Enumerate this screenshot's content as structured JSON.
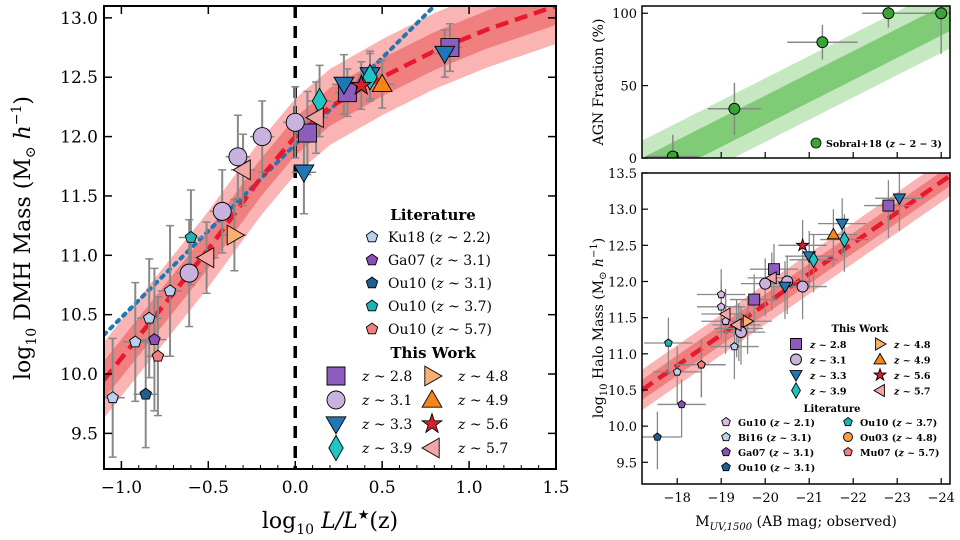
{
  "colors": {
    "red": "#e8192c",
    "band1": "#f08080",
    "band2": "#fbb4b4",
    "green": "#3aa335",
    "gband1": "#7fcb76",
    "gband2": "#c6e8c0",
    "blue": "#1f77b4",
    "dot": "#1f77b4"
  },
  "chart_data": [
    {
      "id": "left",
      "type": "scatter",
      "xlabel_main": "log",
      "xlabel_sub": "10",
      "xlabel_rest": " L/L",
      "xlabel_star": "★",
      "xlabel_end": "(z)",
      "ylabel_main": "log",
      "ylabel_sub": "10",
      "ylabel_rest": " DMH Mass (M",
      "ylabel_sun": "⊙",
      "ylabel_end": " h",
      "ylabel_sup": "−1",
      "ylabel_close": ")",
      "xlim": [
        -1.1,
        1.5
      ],
      "ylim": [
        9.2,
        13.1
      ],
      "xticks": [
        "−1.0",
        "−0.5",
        "0.0",
        "0.5",
        "1.0",
        "1.5"
      ],
      "xtick_values": [
        -1,
        -0.5,
        0,
        0.5,
        1,
        1.5
      ],
      "yticks": [
        "9.5",
        "10.0",
        "10.5",
        "11.0",
        "11.5",
        "12.0",
        "12.5",
        "13.0"
      ],
      "ytick_values": [
        9.5,
        10,
        10.5,
        11,
        11.5,
        12,
        12.5,
        13
      ],
      "fit_x": [
        -1.1,
        -0.8,
        -0.5,
        -0.2,
        0,
        0.2,
        0.5,
        0.8,
        1.1,
        1.5
      ],
      "fit_y": [
        9.95,
        10.5,
        11.05,
        11.65,
        12.0,
        12.25,
        12.5,
        12.72,
        12.9,
        13.1
      ],
      "dotted_line": {
        "x": [
          -1.1,
          0.8
        ],
        "y": [
          10.33,
          13.1
        ]
      },
      "vline_x": 0,
      "literature": [
        {
          "name": "Ku18",
          "x": -1.05,
          "y": 9.8,
          "err": 0.5,
          "color": "#b8d0f0"
        },
        {
          "name": "Ku18",
          "x": -0.92,
          "y": 10.27,
          "err": 0.5,
          "color": "#b8d0f0"
        },
        {
          "name": "Ku18",
          "x": -0.84,
          "y": 10.47,
          "err": 0.5,
          "color": "#b8d0f0"
        },
        {
          "name": "Ku18",
          "x": -0.72,
          "y": 10.7,
          "err": 0.55,
          "color": "#b8d0f0"
        },
        {
          "name": "Ga07",
          "x": -0.81,
          "y": 10.29,
          "err": 0.6,
          "color": "#8b4fb5"
        },
        {
          "name": "Ou10",
          "x": -0.86,
          "y": 9.83,
          "err": 0.45,
          "color": "#1f5f8f"
        },
        {
          "name": "Ou10",
          "x": -0.6,
          "y": 11.15,
          "err": 0.4,
          "color": "#20b3b3"
        },
        {
          "name": "Ou10",
          "x": -0.79,
          "y": 10.15,
          "err": 0.5,
          "color": "#f08080"
        }
      ],
      "this_work": [
        {
          "z": "2.8",
          "x": 0.07,
          "y": 12.03,
          "marker": "square",
          "color": "#8e5cbf",
          "err": 0.35
        },
        {
          "z": "2.8",
          "x": 0.3,
          "y": 12.37,
          "marker": "square",
          "color": "#8e5cbf",
          "err": 0.2
        },
        {
          "z": "2.8",
          "x": 0.89,
          "y": 12.75,
          "marker": "square",
          "color": "#8e5cbf",
          "err": 0.2
        },
        {
          "z": "3.1",
          "x": -0.61,
          "y": 10.85,
          "marker": "circle",
          "color": "#c8b3df",
          "err": 0.45
        },
        {
          "z": "3.1",
          "x": -0.42,
          "y": 11.37,
          "marker": "circle",
          "color": "#c8b3df",
          "err": 0.35
        },
        {
          "z": "3.1",
          "x": -0.33,
          "y": 11.83,
          "marker": "circle",
          "color": "#c8b3df",
          "err": 0.35
        },
        {
          "z": "3.1",
          "x": -0.19,
          "y": 12.0,
          "marker": "circle",
          "color": "#c8b3df",
          "err": 0.3
        },
        {
          "z": "3.1",
          "x": 0.0,
          "y": 12.12,
          "marker": "circle",
          "color": "#c8b3df",
          "err": 0.3
        },
        {
          "z": "3.3",
          "x": 0.05,
          "y": 11.7,
          "marker": "tridown",
          "color": "#1f77b4",
          "err": 0.35
        },
        {
          "z": "3.3",
          "x": 0.28,
          "y": 12.44,
          "marker": "tridown",
          "color": "#1f77b4",
          "err": 0.25
        },
        {
          "z": "3.3",
          "x": 0.43,
          "y": 12.52,
          "marker": "tridown",
          "color": "#1f77b4",
          "err": 0.2
        },
        {
          "z": "3.3",
          "x": 0.86,
          "y": 12.7,
          "marker": "tridown",
          "color": "#1f77b4",
          "err": 0.2
        },
        {
          "z": "3.9",
          "x": 0.14,
          "y": 12.3,
          "marker": "diamond",
          "color": "#20c4c4",
          "err": 0.3
        },
        {
          "z": "3.9",
          "x": 0.43,
          "y": 12.5,
          "marker": "diamond",
          "color": "#20c4c4",
          "err": 0.2
        },
        {
          "z": "4.8",
          "x": -0.35,
          "y": 11.17,
          "marker": "triright",
          "color": "#f7b070",
          "err": 0.3
        },
        {
          "z": "4.9",
          "x": 0.5,
          "y": 12.44,
          "marker": "triup",
          "color": "#f58518",
          "err": 0.2
        },
        {
          "z": "5.6",
          "x": 0.38,
          "y": 12.43,
          "marker": "star",
          "color": "#d8202c",
          "err": 0.2
        },
        {
          "z": "5.7",
          "x": -0.51,
          "y": 10.98,
          "marker": "trileft",
          "color": "#f4a6a6",
          "err": 0.3
        },
        {
          "z": "5.7",
          "x": -0.3,
          "y": 11.72,
          "marker": "trileft",
          "color": "#f4a6a6",
          "err": 0.3
        },
        {
          "z": "5.7",
          "x": 0.12,
          "y": 12.16,
          "marker": "trileft",
          "color": "#f4a6a6",
          "err": 0.3
        }
      ],
      "legend_lit_title": "Literature",
      "legend_lit": [
        {
          "label": "Ku18 (",
          "z": "z",
          "rest": " ~ 2.2)",
          "color": "#b8d0f0"
        },
        {
          "label": "Ga07 (",
          "z": "z",
          "rest": " ~ 3.1)",
          "color": "#8b4fb5"
        },
        {
          "label": "Ou10 (",
          "z": "z",
          "rest": " ~ 3.1)",
          "color": "#1f5f8f"
        },
        {
          "label": "Ou10 (",
          "z": "z",
          "rest": " ~ 3.7)",
          "color": "#20b3b3"
        },
        {
          "label": "Ou10 (",
          "z": "z",
          "rest": " ~ 5.7)",
          "color": "#f08080"
        }
      ],
      "legend_tw_title": "This Work",
      "legend_tw": [
        {
          "z": "z",
          "rest": " ~ 2.8",
          "marker": "square",
          "color": "#8e5cbf"
        },
        {
          "z": "z",
          "rest": " ~ 3.1",
          "marker": "circle",
          "color": "#c8b3df"
        },
        {
          "z": "z",
          "rest": " ~ 3.3",
          "marker": "tridown",
          "color": "#1f77b4"
        },
        {
          "z": "z",
          "rest": " ~ 3.9",
          "marker": "diamond",
          "color": "#20c4c4"
        },
        {
          "z": "z",
          "rest": " ~ 4.8",
          "marker": "triright",
          "color": "#f7b070"
        },
        {
          "z": "z",
          "rest": " ~ 4.9",
          "marker": "triup",
          "color": "#f58518"
        },
        {
          "z": "z",
          "rest": " ~ 5.6",
          "marker": "star",
          "color": "#d8202c"
        },
        {
          "z": "z",
          "rest": " ~ 5.7",
          "marker": "trileft",
          "color": "#f4a6a6"
        }
      ]
    },
    {
      "id": "top-right",
      "type": "scatter",
      "ylabel": "AGN Fraction (%)",
      "xlim": [
        -17.2,
        -24.2
      ],
      "ylim": [
        0,
        105
      ],
      "yticks": [
        "0",
        "50",
        "100"
      ],
      "ytick_values": [
        0,
        50,
        100
      ],
      "points": [
        {
          "x": -17.9,
          "y": 1,
          "xerr": 0.6,
          "yerr": 15
        },
        {
          "x": -19.3,
          "y": 34,
          "xerr": 0.6,
          "yerr": 18
        },
        {
          "x": -21.3,
          "y": 80,
          "xerr": 0.8,
          "yerr": 12
        },
        {
          "x": -22.8,
          "y": 100,
          "xerr": 0.6,
          "yerr": 10
        },
        {
          "x": -24.0,
          "y": 100,
          "xerr": 0.6,
          "yerr": 28
        }
      ],
      "legend": "Sobral+18 (",
      "legend_z": "z",
      "legend_rest": " ~ 2 − 3)"
    },
    {
      "id": "bottom-right",
      "type": "scatter",
      "xlabel_main": "M",
      "xlabel_sub": "UV,1500",
      "xlabel_rest": " (AB mag; observed)",
      "ylabel_main": "log",
      "ylabel_sub": "10",
      "ylabel_rest": " Halo Mass (M",
      "ylabel_sun": "⊙",
      "ylabel_end": " h",
      "ylabel_sup": "−1",
      "ylabel_close": ")",
      "xlim": [
        -17.2,
        -24.2
      ],
      "ylim": [
        9.2,
        13.5
      ],
      "xticks": [
        "−18",
        "−19",
        "−20",
        "−21",
        "−22",
        "−23",
        "−24"
      ],
      "xtick_values": [
        -18,
        -19,
        -20,
        -21,
        -22,
        -23,
        -24
      ],
      "yticks": [
        "9.5",
        "10.0",
        "10.5",
        "11.0",
        "11.5",
        "12.0",
        "12.5",
        "13.0",
        "13.5"
      ],
      "ytick_values": [
        9.5,
        10,
        10.5,
        11,
        11.5,
        12,
        12.5,
        13,
        13.5
      ],
      "fit_x": [
        -17.2,
        -18.5,
        -19.5,
        -20.5,
        -21.5,
        -22.5,
        -23.5,
        -24.2
      ],
      "fit_y": [
        10.5,
        11.05,
        11.55,
        12.0,
        12.45,
        12.85,
        13.2,
        13.45
      ],
      "legend_tw_title": "This Work",
      "legend_lit_title": "Literature",
      "legend_tw": [
        {
          "z": "z",
          "rest": " ~ 2.8",
          "marker": "square",
          "color": "#8e5cbf"
        },
        {
          "z": "z",
          "rest": " ~ 3.1",
          "marker": "circle",
          "color": "#c8b3df"
        },
        {
          "z": "z",
          "rest": " ~ 3.3",
          "marker": "tridown",
          "color": "#1f77b4"
        },
        {
          "z": "z",
          "rest": " ~ 3.9",
          "marker": "diamond",
          "color": "#20c4c4"
        },
        {
          "z": "z",
          "rest": " ~ 4.8",
          "marker": "triright",
          "color": "#f7b070"
        },
        {
          "z": "z",
          "rest": " ~ 4.9",
          "marker": "triup",
          "color": "#f58518"
        },
        {
          "z": "z",
          "rest": " ~ 5.6",
          "marker": "star",
          "color": "#d8202c"
        },
        {
          "z": "z",
          "rest": " ~ 5.7",
          "marker": "trileft",
          "color": "#f4a6a6"
        }
      ],
      "legend_lit": [
        {
          "label": "Gu10 (",
          "z": "z",
          "rest": " ~ 2.1)",
          "color": "#d8b8e8",
          "marker": "pent"
        },
        {
          "label": "Bi16 (",
          "z": "z",
          "rest": " ~ 3.1)",
          "color": "#b8d0f0",
          "marker": "pent"
        },
        {
          "label": "Ga07 (",
          "z": "z",
          "rest": " ~ 3.1)",
          "color": "#8b4fb5",
          "marker": "pent"
        },
        {
          "label": "Ou10 (",
          "z": "z",
          "rest": " ~ 3.1)",
          "color": "#1f5f8f",
          "marker": "pent"
        },
        {
          "label": "Ou10 (",
          "z": "z",
          "rest": " ~ 3.7)",
          "color": "#20b3b3",
          "marker": "pent"
        },
        {
          "label": "Ou03 (",
          "z": "z",
          "rest": " ~ 4.8)",
          "color": "#f7a040",
          "marker": "circle"
        },
        {
          "label": "Mu07 (",
          "z": "z",
          "rest": " ~ 5.7)",
          "color": "#f08080",
          "marker": "pent"
        }
      ],
      "this_work": [
        {
          "x": -19.75,
          "y": 11.75,
          "marker": "square",
          "color": "#8e5cbf"
        },
        {
          "x": -20.2,
          "y": 12.17,
          "marker": "square",
          "color": "#8e5cbf"
        },
        {
          "x": -22.8,
          "y": 13.05,
          "marker": "square",
          "color": "#8e5cbf"
        },
        {
          "x": -19.45,
          "y": 11.3,
          "marker": "circle",
          "color": "#c8b3df"
        },
        {
          "x": -20.0,
          "y": 11.97,
          "marker": "circle",
          "color": "#c8b3df"
        },
        {
          "x": -20.5,
          "y": 12.0,
          "marker": "circle",
          "color": "#c8b3df"
        },
        {
          "x": -20.85,
          "y": 11.93,
          "marker": "circle",
          "color": "#c8b3df"
        },
        {
          "x": -20.45,
          "y": 11.93,
          "marker": "tridown",
          "color": "#1f77b4"
        },
        {
          "x": -21.0,
          "y": 12.35,
          "marker": "tridown",
          "color": "#1f77b4"
        },
        {
          "x": -21.75,
          "y": 12.8,
          "marker": "tridown",
          "color": "#1f77b4"
        },
        {
          "x": -23.05,
          "y": 13.15,
          "marker": "tridown",
          "color": "#1f77b4"
        },
        {
          "x": -21.1,
          "y": 12.3,
          "marker": "diamond",
          "color": "#20c4c4"
        },
        {
          "x": -21.8,
          "y": 12.58,
          "marker": "diamond",
          "color": "#20c4c4"
        },
        {
          "x": -19.6,
          "y": 11.45,
          "marker": "triright",
          "color": "#f7b070"
        },
        {
          "x": -21.55,
          "y": 12.65,
          "marker": "triup",
          "color": "#f58518"
        },
        {
          "x": -20.85,
          "y": 12.5,
          "marker": "star",
          "color": "#d8202c"
        },
        {
          "x": -19.1,
          "y": 11.55,
          "marker": "trileft",
          "color": "#f4a6a6"
        },
        {
          "x": -19.35,
          "y": 11.4,
          "marker": "trileft",
          "color": "#f4a6a6"
        },
        {
          "x": -20.15,
          "y": 12.05,
          "marker": "trileft",
          "color": "#f4a6a6"
        }
      ],
      "literature": [
        {
          "x": -19.0,
          "y": 11.82,
          "marker": "pent",
          "color": "#d8b8e8"
        },
        {
          "x": -19.0,
          "y": 11.65,
          "marker": "pent",
          "color": "#d8b8e8"
        },
        {
          "x": -19.4,
          "y": 11.35,
          "marker": "pent",
          "color": "#d8b8e8"
        },
        {
          "x": -19.1,
          "y": 11.45,
          "marker": "pent",
          "color": "#d8b8e8"
        },
        {
          "x": -18.0,
          "y": 10.75,
          "marker": "pent",
          "color": "#b8d0f0"
        },
        {
          "x": -18.55,
          "y": 10.85,
          "marker": "pent",
          "color": "#b8d0f0"
        },
        {
          "x": -19.3,
          "y": 11.1,
          "marker": "pent",
          "color": "#b8d0f0"
        },
        {
          "x": -18.1,
          "y": 10.3,
          "marker": "pent",
          "color": "#8b4fb5"
        },
        {
          "x": -17.55,
          "y": 9.85,
          "marker": "pent",
          "color": "#1f5f8f"
        },
        {
          "x": -17.8,
          "y": 11.15,
          "marker": "pent",
          "color": "#20b3b3"
        },
        {
          "x": -18.55,
          "y": 10.85,
          "marker": "pent",
          "color": "#f08080"
        }
      ]
    }
  ]
}
